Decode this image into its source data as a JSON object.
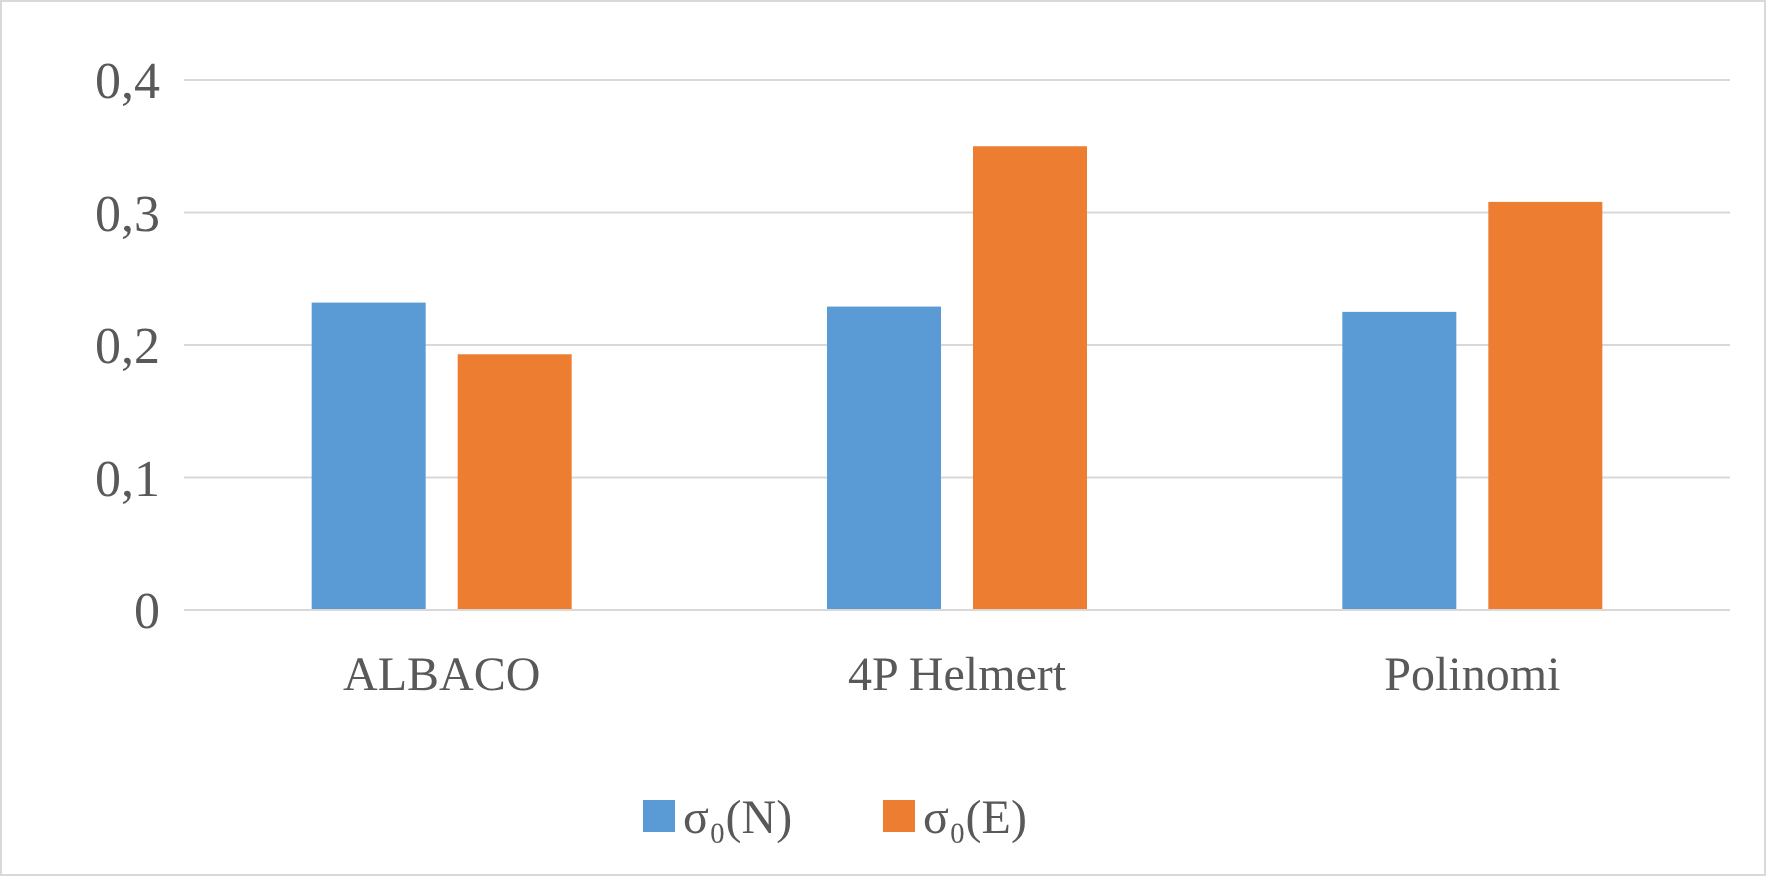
{
  "chart_data": {
    "type": "bar",
    "categories": [
      "ALBACO",
      "4P Helmert",
      "Polinomi"
    ],
    "series": [
      {
        "name": "σ₀(N)",
        "color": "#5b9bd5",
        "values": [
          0.232,
          0.229,
          0.225
        ]
      },
      {
        "name": "σ₀(E)",
        "color": "#ed7d31",
        "values": [
          0.193,
          0.35,
          0.308
        ]
      }
    ],
    "ylim": [
      0,
      0.4
    ],
    "yticks": [
      {
        "value": 0,
        "label": "0"
      },
      {
        "value": 0.1,
        "label": "0,1"
      },
      {
        "value": 0.2,
        "label": "0,2"
      },
      {
        "value": 0.3,
        "label": "0,3"
      },
      {
        "value": 0.4,
        "label": "0,4"
      }
    ],
    "grid": "y",
    "legend": "bottom"
  }
}
